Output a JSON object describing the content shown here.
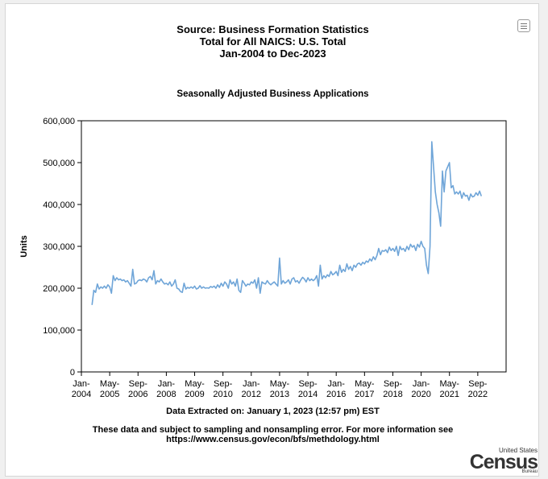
{
  "header": {
    "line1": "Source: Business Formation Statistics",
    "line2": "Total for All NAICS: U.S. Total",
    "line3": "Jan-2004 to Dec-2023"
  },
  "menu_icon": "hamburger-menu-icon",
  "footer": {
    "extracted": "Data Extracted on: January 1, 2023 (12:57 pm) EST",
    "note_line1": "These data and subject to sampling and nonsampling error. For more information see",
    "note_line2": "https://www.census.gov/econ/bfs/methdology.html"
  },
  "logo": {
    "top": "United States",
    "main": "Census",
    "bottom": "Bureau"
  },
  "colors": {
    "line": "#6fa5d8",
    "axis": "#000000",
    "background": "#ffffff"
  },
  "chart_data": {
    "type": "line",
    "title": "Seasonally Adjusted Business Applications",
    "ylabel": "Units",
    "ylim": [
      0,
      600000
    ],
    "yticks": [
      0,
      100000,
      200000,
      300000,
      400000,
      500000,
      600000
    ],
    "ytick_labels": [
      "0",
      "100,000",
      "200,000",
      "300,000",
      "400,000",
      "500,000",
      "600,000"
    ],
    "xticks": [
      {
        "top": "Jan-",
        "bottom": "2004",
        "date": "2004-01"
      },
      {
        "top": "May-",
        "bottom": "2005",
        "date": "2005-05"
      },
      {
        "top": "Sep-",
        "bottom": "2006",
        "date": "2006-09"
      },
      {
        "top": "Jan-",
        "bottom": "2008",
        "date": "2008-01"
      },
      {
        "top": "May-",
        "bottom": "2009",
        "date": "2009-05"
      },
      {
        "top": "Sep-",
        "bottom": "2010",
        "date": "2010-09"
      },
      {
        "top": "Jan-",
        "bottom": "2012",
        "date": "2012-01"
      },
      {
        "top": "May-",
        "bottom": "2013",
        "date": "2013-05"
      },
      {
        "top": "Sep-",
        "bottom": "2014",
        "date": "2014-09"
      },
      {
        "top": "Jan-",
        "bottom": "2016",
        "date": "2016-01"
      },
      {
        "top": "May-",
        "bottom": "2017",
        "date": "2017-05"
      },
      {
        "top": "Sep-",
        "bottom": "2018",
        "date": "2018-09"
      },
      {
        "top": "Jan-",
        "bottom": "2020",
        "date": "2020-01"
      },
      {
        "top": "May-",
        "bottom": "2021",
        "date": "2021-05"
      },
      {
        "top": "Sep-",
        "bottom": "2022",
        "date": "2022-09"
      }
    ],
    "grid": false,
    "series": [
      {
        "points": [
          [
            "2004-07",
            160000
          ],
          [
            "2004-08",
            195000
          ],
          [
            "2004-09",
            190000
          ],
          [
            "2004-10",
            210000
          ],
          [
            "2004-11",
            198000
          ],
          [
            "2004-12",
            203000
          ],
          [
            "2005-01",
            200000
          ],
          [
            "2005-02",
            205000
          ],
          [
            "2005-03",
            200000
          ],
          [
            "2005-04",
            208000
          ],
          [
            "2005-05",
            203000
          ],
          [
            "2005-06",
            188000
          ],
          [
            "2005-07",
            230000
          ],
          [
            "2005-08",
            218000
          ],
          [
            "2005-09",
            225000
          ],
          [
            "2005-10",
            220000
          ],
          [
            "2005-11",
            222000
          ],
          [
            "2005-12",
            218000
          ],
          [
            "2006-01",
            220000
          ],
          [
            "2006-02",
            215000
          ],
          [
            "2006-03",
            218000
          ],
          [
            "2006-04",
            212000
          ],
          [
            "2006-05",
            205000
          ],
          [
            "2006-06",
            245000
          ],
          [
            "2006-07",
            210000
          ],
          [
            "2006-08",
            212000
          ],
          [
            "2006-09",
            218000
          ],
          [
            "2006-10",
            220000
          ],
          [
            "2006-11",
            218000
          ],
          [
            "2006-12",
            222000
          ],
          [
            "2007-01",
            220000
          ],
          [
            "2007-02",
            215000
          ],
          [
            "2007-03",
            225000
          ],
          [
            "2007-04",
            228000
          ],
          [
            "2007-05",
            220000
          ],
          [
            "2007-06",
            242000
          ],
          [
            "2007-07",
            210000
          ],
          [
            "2007-08",
            218000
          ],
          [
            "2007-09",
            215000
          ],
          [
            "2007-10",
            222000
          ],
          [
            "2007-11",
            215000
          ],
          [
            "2007-12",
            210000
          ],
          [
            "2008-01",
            212000
          ],
          [
            "2008-02",
            208000
          ],
          [
            "2008-03",
            215000
          ],
          [
            "2008-04",
            205000
          ],
          [
            "2008-05",
            210000
          ],
          [
            "2008-06",
            220000
          ],
          [
            "2008-07",
            200000
          ],
          [
            "2008-08",
            198000
          ],
          [
            "2008-09",
            192000
          ],
          [
            "2008-10",
            190000
          ],
          [
            "2008-11",
            212000
          ],
          [
            "2008-12",
            198000
          ],
          [
            "2009-01",
            202000
          ],
          [
            "2009-02",
            200000
          ],
          [
            "2009-03",
            203000
          ],
          [
            "2009-04",
            200000
          ],
          [
            "2009-05",
            205000
          ],
          [
            "2009-06",
            198000
          ],
          [
            "2009-07",
            200000
          ],
          [
            "2009-08",
            206000
          ],
          [
            "2009-09",
            200000
          ],
          [
            "2009-10",
            203000
          ],
          [
            "2009-11",
            200000
          ],
          [
            "2009-12",
            201000
          ],
          [
            "2010-01",
            200000
          ],
          [
            "2010-02",
            204000
          ],
          [
            "2010-03",
            202000
          ],
          [
            "2010-04",
            205000
          ],
          [
            "2010-05",
            200000
          ],
          [
            "2010-06",
            208000
          ],
          [
            "2010-07",
            202000
          ],
          [
            "2010-08",
            212000
          ],
          [
            "2010-09",
            205000
          ],
          [
            "2010-10",
            215000
          ],
          [
            "2010-11",
            210000
          ],
          [
            "2010-12",
            200000
          ],
          [
            "2011-01",
            220000
          ],
          [
            "2011-02",
            210000
          ],
          [
            "2011-03",
            215000
          ],
          [
            "2011-04",
            205000
          ],
          [
            "2011-05",
            222000
          ],
          [
            "2011-06",
            195000
          ],
          [
            "2011-07",
            190000
          ],
          [
            "2011-08",
            218000
          ],
          [
            "2011-09",
            212000
          ],
          [
            "2011-10",
            205000
          ],
          [
            "2011-11",
            210000
          ],
          [
            "2011-12",
            208000
          ],
          [
            "2012-01",
            215000
          ],
          [
            "2012-02",
            212000
          ],
          [
            "2012-03",
            220000
          ],
          [
            "2012-04",
            200000
          ],
          [
            "2012-05",
            225000
          ],
          [
            "2012-06",
            188000
          ],
          [
            "2012-07",
            215000
          ],
          [
            "2012-08",
            212000
          ],
          [
            "2012-09",
            210000
          ],
          [
            "2012-10",
            218000
          ],
          [
            "2012-11",
            212000
          ],
          [
            "2012-12",
            208000
          ],
          [
            "2013-01",
            212000
          ],
          [
            "2013-02",
            215000
          ],
          [
            "2013-03",
            210000
          ],
          [
            "2013-04",
            205000
          ],
          [
            "2013-05",
            272000
          ],
          [
            "2013-06",
            210000
          ],
          [
            "2013-07",
            218000
          ],
          [
            "2013-08",
            212000
          ],
          [
            "2013-09",
            215000
          ],
          [
            "2013-10",
            220000
          ],
          [
            "2013-11",
            210000
          ],
          [
            "2013-12",
            222000
          ],
          [
            "2014-01",
            225000
          ],
          [
            "2014-02",
            215000
          ],
          [
            "2014-03",
            218000
          ],
          [
            "2014-04",
            212000
          ],
          [
            "2014-05",
            220000
          ],
          [
            "2014-06",
            226000
          ],
          [
            "2014-07",
            222000
          ],
          [
            "2014-08",
            215000
          ],
          [
            "2014-09",
            225000
          ],
          [
            "2014-10",
            218000
          ],
          [
            "2014-11",
            222000
          ],
          [
            "2014-12",
            218000
          ],
          [
            "2015-01",
            222000
          ],
          [
            "2015-02",
            230000
          ],
          [
            "2015-03",
            205000
          ],
          [
            "2015-04",
            255000
          ],
          [
            "2015-05",
            222000
          ],
          [
            "2015-06",
            230000
          ],
          [
            "2015-07",
            225000
          ],
          [
            "2015-08",
            232000
          ],
          [
            "2015-09",
            228000
          ],
          [
            "2015-10",
            240000
          ],
          [
            "2015-11",
            232000
          ],
          [
            "2015-12",
            235000
          ],
          [
            "2016-01",
            240000
          ],
          [
            "2016-02",
            230000
          ],
          [
            "2016-03",
            255000
          ],
          [
            "2016-04",
            238000
          ],
          [
            "2016-05",
            245000
          ],
          [
            "2016-06",
            240000
          ],
          [
            "2016-07",
            258000
          ],
          [
            "2016-08",
            245000
          ],
          [
            "2016-09",
            252000
          ],
          [
            "2016-10",
            242000
          ],
          [
            "2016-11",
            255000
          ],
          [
            "2016-12",
            250000
          ],
          [
            "2017-01",
            258000
          ],
          [
            "2017-02",
            260000
          ],
          [
            "2017-03",
            255000
          ],
          [
            "2017-04",
            262000
          ],
          [
            "2017-05",
            258000
          ],
          [
            "2017-06",
            265000
          ],
          [
            "2017-07",
            262000
          ],
          [
            "2017-08",
            270000
          ],
          [
            "2017-09",
            265000
          ],
          [
            "2017-10",
            275000
          ],
          [
            "2017-11",
            268000
          ],
          [
            "2017-12",
            278000
          ],
          [
            "2018-01",
            295000
          ],
          [
            "2018-02",
            280000
          ],
          [
            "2018-03",
            290000
          ],
          [
            "2018-04",
            288000
          ],
          [
            "2018-05",
            292000
          ],
          [
            "2018-06",
            285000
          ],
          [
            "2018-07",
            298000
          ],
          [
            "2018-08",
            290000
          ],
          [
            "2018-09",
            295000
          ],
          [
            "2018-10",
            288000
          ],
          [
            "2018-11",
            300000
          ],
          [
            "2018-12",
            278000
          ],
          [
            "2019-01",
            300000
          ],
          [
            "2019-02",
            292000
          ],
          [
            "2019-03",
            295000
          ],
          [
            "2019-04",
            288000
          ],
          [
            "2019-05",
            300000
          ],
          [
            "2019-06",
            292000
          ],
          [
            "2019-07",
            305000
          ],
          [
            "2019-08",
            298000
          ],
          [
            "2019-09",
            302000
          ],
          [
            "2019-10",
            290000
          ],
          [
            "2019-11",
            305000
          ],
          [
            "2019-12",
            298000
          ],
          [
            "2020-01",
            312000
          ],
          [
            "2020-02",
            300000
          ],
          [
            "2020-03",
            295000
          ],
          [
            "2020-04",
            255000
          ],
          [
            "2020-05",
            235000
          ],
          [
            "2020-06",
            300000
          ],
          [
            "2020-07",
            550000
          ],
          [
            "2020-08",
            490000
          ],
          [
            "2020-09",
            430000
          ],
          [
            "2020-10",
            400000
          ],
          [
            "2020-11",
            380000
          ],
          [
            "2020-12",
            348000
          ],
          [
            "2021-01",
            480000
          ],
          [
            "2021-02",
            430000
          ],
          [
            "2021-03",
            480000
          ],
          [
            "2021-04",
            490000
          ],
          [
            "2021-05",
            500000
          ],
          [
            "2021-06",
            440000
          ],
          [
            "2021-07",
            445000
          ],
          [
            "2021-08",
            425000
          ],
          [
            "2021-09",
            430000
          ],
          [
            "2021-10",
            425000
          ],
          [
            "2021-11",
            432000
          ],
          [
            "2021-12",
            415000
          ],
          [
            "2022-01",
            428000
          ],
          [
            "2022-02",
            420000
          ],
          [
            "2022-03",
            422000
          ],
          [
            "2022-04",
            410000
          ],
          [
            "2022-05",
            425000
          ],
          [
            "2022-06",
            418000
          ],
          [
            "2022-07",
            420000
          ],
          [
            "2022-08",
            428000
          ],
          [
            "2022-09",
            422000
          ],
          [
            "2022-10",
            432000
          ],
          [
            "2022-11",
            420000
          ]
        ]
      }
    ]
  }
}
